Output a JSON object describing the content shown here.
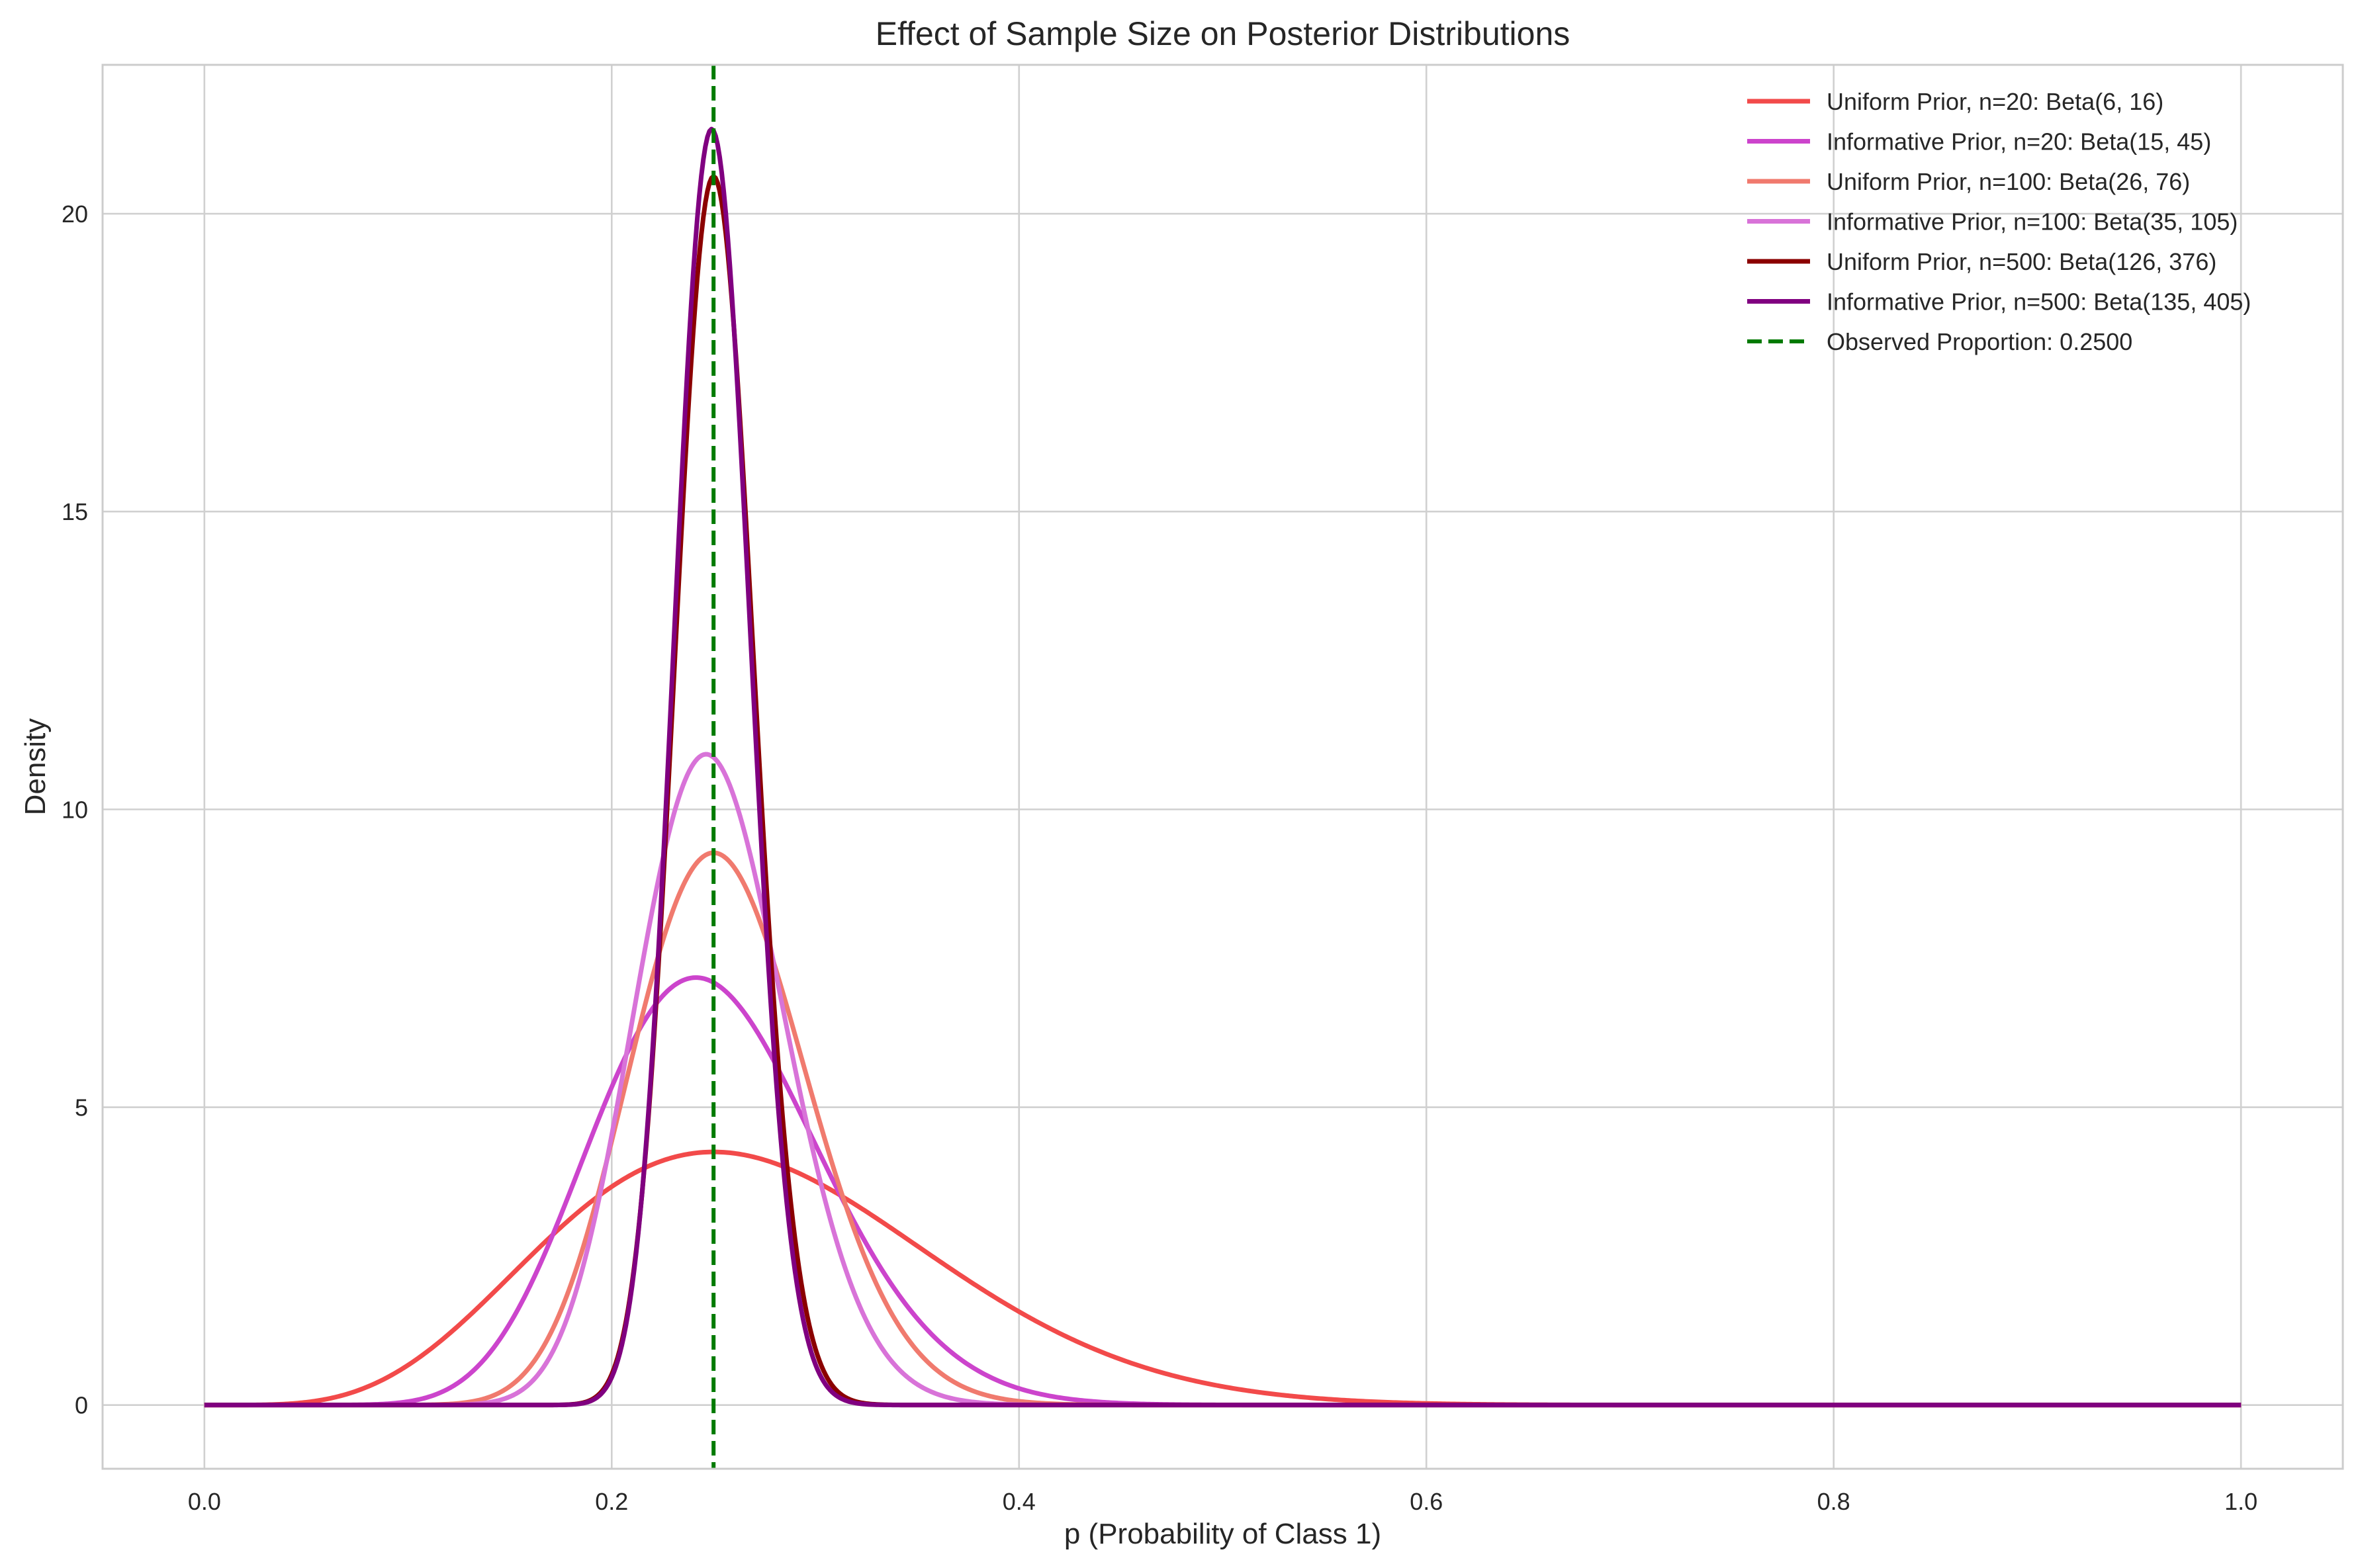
{
  "chart_data": {
    "type": "line",
    "title": "Effect of Sample Size on Posterior Distributions",
    "xlabel": "p (Probability of Class 1)",
    "ylabel": "Density",
    "xlim": [
      -0.05,
      1.05
    ],
    "ylim": [
      -1.07,
      22.5
    ],
    "xticks": [
      0.0,
      0.2,
      0.4,
      0.6,
      0.8,
      1.0
    ],
    "xtick_labels": [
      "0.0",
      "0.2",
      "0.4",
      "0.6",
      "0.8",
      "1.0"
    ],
    "yticks": [
      0,
      5,
      10,
      15,
      20
    ],
    "ytick_labels": [
      "0",
      "5",
      "10",
      "15",
      "20"
    ],
    "grid": true,
    "legend_position": "top-right",
    "series": [
      {
        "name": "Uniform Prior, n=20: Beta(6, 16)",
        "distribution": "beta",
        "alpha": 6,
        "beta": 16,
        "color": "#f24a4a",
        "style": "solid"
      },
      {
        "name": "Informative Prior, n=20: Beta(15, 45)",
        "distribution": "beta",
        "alpha": 15,
        "beta": 45,
        "color": "#cc44cc",
        "style": "solid"
      },
      {
        "name": "Uniform Prior, n=100: Beta(26, 76)",
        "distribution": "beta",
        "alpha": 26,
        "beta": 76,
        "color": "#f07a6e",
        "style": "solid"
      },
      {
        "name": "Informative Prior, n=100: Beta(35, 105)",
        "distribution": "beta",
        "alpha": 35,
        "beta": 105,
        "color": "#d873d8",
        "style": "solid"
      },
      {
        "name": "Uniform Prior, n=500: Beta(126, 376)",
        "distribution": "beta",
        "alpha": 126,
        "beta": 376,
        "color": "#8b0000",
        "style": "solid"
      },
      {
        "name": "Informative Prior, n=500: Beta(135, 405)",
        "distribution": "beta",
        "alpha": 135,
        "beta": 405,
        "color": "#800080",
        "style": "solid"
      }
    ],
    "reference_line": {
      "name": "Observed Proportion: 0.2500",
      "x": 0.25,
      "color": "#007a00",
      "style": "dashed"
    }
  }
}
